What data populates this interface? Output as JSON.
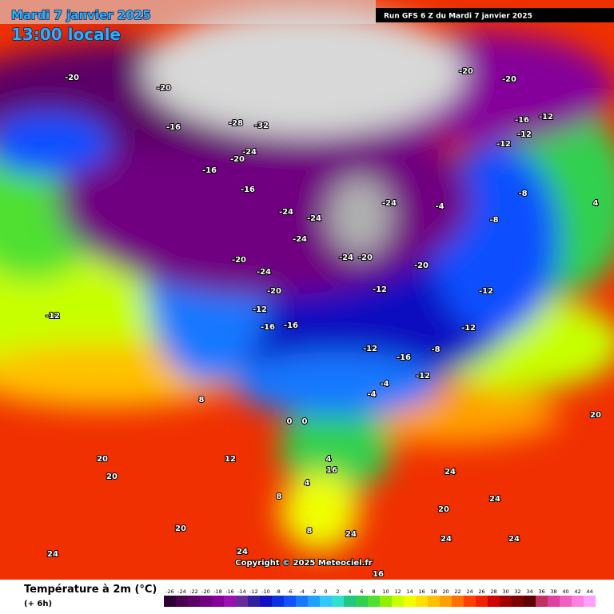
{
  "header": {
    "date": "Mardi 7 janvier 2025",
    "time": "13:00 locale",
    "run": "Run GFS 6 Z du Mardi 7 janvier 2025"
  },
  "copyright": "Copyright © 2025 Meteociel.fr",
  "legend": {
    "title": "Température à 2m (°C)",
    "subtitle": "(+ 6h)",
    "scale": [
      -26,
      -24,
      -22,
      -20,
      -18,
      -16,
      -14,
      -12,
      -10,
      -8,
      -6,
      -4,
      -2,
      0,
      2,
      4,
      6,
      8,
      10,
      12,
      14,
      16,
      18,
      20,
      22,
      24,
      26,
      28,
      30,
      32,
      34,
      36,
      38,
      40,
      42,
      44
    ],
    "colors": [
      "#2b0033",
      "#4a0050",
      "#5c0068",
      "#700080",
      "#85009a",
      "#9a10b0",
      "#6a2a9a",
      "#3020a0",
      "#1010c0",
      "#0a30e0",
      "#1050ff",
      "#1878ff",
      "#20a0ff",
      "#30c8ff",
      "#30e0d0",
      "#20c880",
      "#30d050",
      "#50e030",
      "#90f000",
      "#c8ff00",
      "#f0ff00",
      "#ffe000",
      "#ffc000",
      "#ffa000",
      "#ff7000",
      "#ff4000",
      "#f02000",
      "#d00000",
      "#a00000",
      "#800000",
      "#600000",
      "#c03060",
      "#e040a0",
      "#f060c0",
      "#ff80e0",
      "#ffa0ff"
    ]
  },
  "map_labels": [
    -20,
    -20,
    -16,
    -28,
    -32,
    -24,
    -20,
    -16,
    -16,
    -24,
    -24,
    -24,
    -24,
    -24,
    -20,
    -20,
    -12,
    -4,
    -8,
    -8,
    4,
    -12,
    -12,
    -12,
    -16,
    -20,
    -20,
    -12,
    20,
    20,
    20,
    24,
    24,
    24,
    24,
    24,
    20,
    24,
    24,
    20,
    0,
    0,
    4,
    4,
    8,
    8,
    12,
    16,
    16,
    -12,
    -8,
    -12,
    -12,
    -12,
    -16,
    -4,
    -4,
    -16,
    -16,
    -12,
    -20,
    -24,
    -20,
    8
  ]
}
